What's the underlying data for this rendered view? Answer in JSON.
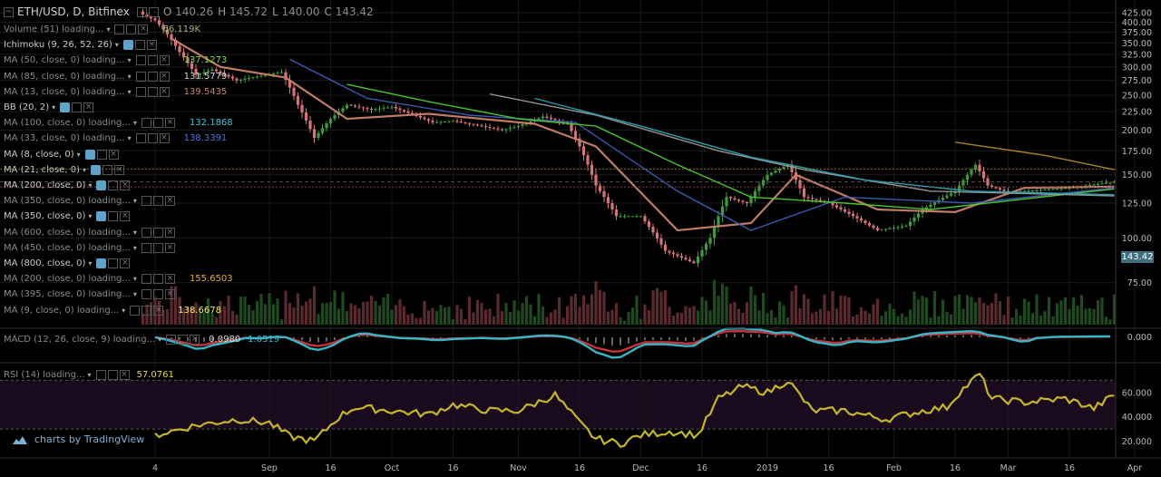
{
  "header": {
    "symbol": "ETH/USD, D, Bitfinex",
    "o_label": "O",
    "o_value": "140.26",
    "h_label": "H",
    "h_value": "145.72",
    "l_label": "L",
    "l_value": "140.00",
    "c_label": "C",
    "c_value": "143.42"
  },
  "indicators": [
    {
      "label": "Volume (51) loading...",
      "loading": true,
      "value": "66.119K",
      "value_color": "#9fb86a"
    },
    {
      "label": "Ichimoku (9, 26, 52, 26)",
      "loading": false,
      "value": "",
      "value_color": ""
    },
    {
      "label": "MA (50, close, 0) loading...",
      "loading": true,
      "value": "137.1273",
      "value_color": "#7ddc3a"
    },
    {
      "label": "MA (85, close, 0) loading...",
      "loading": true,
      "value": "131.5779",
      "value_color": "#d9d9d9"
    },
    {
      "label": "MA (13, close, 0) loading...",
      "loading": true,
      "value": "139.5435",
      "value_color": "#c9826b"
    },
    {
      "label": "BB (20, 2)",
      "loading": false,
      "value": "",
      "value_color": ""
    },
    {
      "label": "MA (100, close, 0) loading...",
      "loading": true,
      "value": "132.1868",
      "value_color": "#3fc3d9"
    },
    {
      "label": "MA (33, close, 0) loading...",
      "loading": true,
      "value": "138.3391",
      "value_color": "#4a78d9"
    },
    {
      "label": "MA (8, close, 0)",
      "loading": false,
      "value": "",
      "value_color": ""
    },
    {
      "label": "MA (21, close, 0)",
      "loading": false,
      "value": "",
      "value_color": ""
    },
    {
      "label": "MA (200, close, 0)",
      "loading": false,
      "value": "",
      "value_color": ""
    },
    {
      "label": "MA (350, close, 0) loading...",
      "loading": true,
      "value": "",
      "value_color": ""
    },
    {
      "label": "MA (350, close, 0)",
      "loading": false,
      "value": "",
      "value_color": ""
    },
    {
      "label": "MA (600, close, 0) loading...",
      "loading": true,
      "value": "",
      "value_color": ""
    },
    {
      "label": "MA (450, close, 0) loading...",
      "loading": true,
      "value": "",
      "value_color": ""
    },
    {
      "label": "MA (800, close, 0)",
      "loading": false,
      "value": "",
      "value_color": ""
    },
    {
      "label": "MA (200, close, 0) loading...",
      "loading": true,
      "value": "155.6503",
      "value_color": "#d9b030"
    },
    {
      "label": "MA (395, close, 0) loading...",
      "loading": true,
      "value": "",
      "value_color": ""
    },
    {
      "label": "MA (9, close, 0) loading...",
      "loading": true,
      "value": "138.6678",
      "value_color": "#f2f25a"
    }
  ],
  "macd": {
    "label": "MACD (12, 26, close, 9) loading...",
    "value1": "0.0980",
    "value2": "1.0519"
  },
  "rsi": {
    "label": "RSI (14) loading...",
    "value": "57.0761"
  },
  "last_price_tag": "143.42",
  "logo_text": "charts by TradingView",
  "colors": {
    "up": "#3e9b3e",
    "down": "#d7737a",
    "ma50": "#4ccf2c",
    "ma85": "#9b9b9b",
    "ma13": "#c9826b",
    "ma100": "#2aa6b8",
    "ma33": "#3d5fb8",
    "ma200": "#b08a2a",
    "ma9": "#d9b030",
    "macd": "#36b7c7",
    "signal": "#c8323a",
    "rsi": "#c4b52c"
  },
  "chart_data": {
    "type": "candlestick",
    "price_ticks": [
      "425.00",
      "400.00",
      "375.00",
      "350.00",
      "325.00",
      "300.00",
      "275.00",
      "250.00",
      "225.00",
      "200.00",
      "175.00",
      "150.00",
      "125.00",
      "100.00",
      "75.00"
    ],
    "macd_ticks": [
      "0.000"
    ],
    "rsi_ticks": [
      "60.000",
      "40.000",
      "20.000"
    ],
    "x_ticks": [
      "4",
      "Sep",
      "16",
      "Oct",
      "16",
      "Nov",
      "16",
      "Dec",
      "16",
      "2019",
      "16",
      "Feb",
      "16",
      "Mar",
      "16",
      "Apr"
    ],
    "x_tick_dates": [
      "2018-08-04",
      "2018-09-01",
      "2018-09-16",
      "2018-10-01",
      "2018-10-16",
      "2018-11-01",
      "2018-11-16",
      "2018-12-01",
      "2018-12-16",
      "2019-01-01",
      "2019-01-16",
      "2019-02-01",
      "2019-02-16",
      "2019-03-01",
      "2019-03-16",
      "2019-04-01"
    ],
    "price_range": [
      60,
      430
    ],
    "rsi_range": [
      10,
      80
    ],
    "rsi_guides": [
      70,
      30
    ],
    "close_keypoints": [
      [
        "2018-08-01",
        420
      ],
      [
        "2018-08-04",
        405
      ],
      [
        "2018-08-07",
        370
      ],
      [
        "2018-08-10",
        330
      ],
      [
        "2018-08-14",
        285
      ],
      [
        "2018-08-18",
        295
      ],
      [
        "2018-08-24",
        275
      ],
      [
        "2018-08-31",
        285
      ],
      [
        "2018-09-04",
        290
      ],
      [
        "2018-09-08",
        235
      ],
      [
        "2018-09-12",
        190
      ],
      [
        "2018-09-16",
        215
      ],
      [
        "2018-09-20",
        235
      ],
      [
        "2018-09-26",
        228
      ],
      [
        "2018-10-01",
        232
      ],
      [
        "2018-10-11",
        210
      ],
      [
        "2018-10-16",
        212
      ],
      [
        "2018-10-28",
        200
      ],
      [
        "2018-11-01",
        205
      ],
      [
        "2018-11-07",
        218
      ],
      [
        "2018-11-13",
        208
      ],
      [
        "2018-11-16",
        180
      ],
      [
        "2018-11-20",
        140
      ],
      [
        "2018-11-25",
        115
      ],
      [
        "2018-12-01",
        115
      ],
      [
        "2018-12-07",
        92
      ],
      [
        "2018-12-14",
        85
      ],
      [
        "2018-12-18",
        100
      ],
      [
        "2018-12-22",
        130
      ],
      [
        "2018-12-27",
        125
      ],
      [
        "2019-01-01",
        150
      ],
      [
        "2019-01-06",
        160
      ],
      [
        "2019-01-10",
        130
      ],
      [
        "2019-01-16",
        125
      ],
      [
        "2019-01-28",
        105
      ],
      [
        "2019-02-04",
        108
      ],
      [
        "2019-02-08",
        120
      ],
      [
        "2019-02-16",
        135
      ],
      [
        "2019-02-21",
        160
      ],
      [
        "2019-02-24",
        140
      ],
      [
        "2019-03-01",
        134
      ],
      [
        "2019-03-16",
        138
      ],
      [
        "2019-03-27",
        143.42
      ]
    ],
    "ma_keypoints": {
      "ma13": [
        [
          "2018-08-08",
          360
        ],
        [
          "2018-08-20",
          300
        ],
        [
          "2018-09-05",
          280
        ],
        [
          "2018-09-20",
          215
        ],
        [
          "2018-10-10",
          222
        ],
        [
          "2018-11-05",
          208
        ],
        [
          "2018-11-20",
          180
        ],
        [
          "2018-12-10",
          105
        ],
        [
          "2018-12-28",
          110
        ],
        [
          "2019-01-08",
          150
        ],
        [
          "2019-01-28",
          120
        ],
        [
          "2019-02-16",
          118
        ],
        [
          "2019-03-05",
          138
        ],
        [
          "2019-03-27",
          139
        ]
      ],
      "ma33": [
        [
          "2018-09-06",
          315
        ],
        [
          "2018-09-25",
          245
        ],
        [
          "2018-10-20",
          220
        ],
        [
          "2018-11-15",
          210
        ],
        [
          "2018-12-10",
          135
        ],
        [
          "2018-12-28",
          105
        ],
        [
          "2019-01-20",
          130
        ],
        [
          "2019-02-20",
          125
        ],
        [
          "2019-03-27",
          138
        ]
      ],
      "ma50": [
        [
          "2018-09-20",
          268
        ],
        [
          "2018-10-10",
          240
        ],
        [
          "2018-11-01",
          215
        ],
        [
          "2018-11-20",
          205
        ],
        [
          "2018-12-10",
          160
        ],
        [
          "2018-12-28",
          130
        ],
        [
          "2019-01-20",
          125
        ],
        [
          "2019-02-10",
          120
        ],
        [
          "2019-03-27",
          137
        ]
      ],
      "ma85": [
        [
          "2018-10-25",
          252
        ],
        [
          "2018-11-20",
          220
        ],
        [
          "2018-12-20",
          175
        ],
        [
          "2019-01-10",
          155
        ],
        [
          "2019-02-10",
          135
        ],
        [
          "2019-03-27",
          131
        ]
      ],
      "ma100": [
        [
          "2018-11-05",
          245
        ],
        [
          "2018-12-01",
          205
        ],
        [
          "2018-12-28",
          168
        ],
        [
          "2019-01-25",
          145
        ],
        [
          "2019-02-20",
          135
        ],
        [
          "2019-03-27",
          132
        ]
      ],
      "ma200": [
        [
          "2019-02-16",
          185
        ],
        [
          "2019-03-10",
          170
        ],
        [
          "2019-03-27",
          155
        ]
      ]
    },
    "rsi_keypoints": [
      [
        "2018-08-04",
        25
      ],
      [
        "2018-08-14",
        33
      ],
      [
        "2018-08-24",
        38
      ],
      [
        "2018-09-01",
        35
      ],
      [
        "2018-09-06",
        24
      ],
      [
        "2018-09-12",
        20
      ],
      [
        "2018-09-18",
        40
      ],
      [
        "2018-09-22",
        48
      ],
      [
        "2018-10-01",
        45
      ],
      [
        "2018-10-10",
        42
      ],
      [
        "2018-10-16",
        50
      ],
      [
        "2018-10-25",
        45
      ],
      [
        "2018-11-01",
        45
      ],
      [
        "2018-11-10",
        58
      ],
      [
        "2018-11-16",
        35
      ],
      [
        "2018-11-20",
        22
      ],
      [
        "2018-11-26",
        18
      ],
      [
        "2018-12-01",
        25
      ],
      [
        "2018-12-08",
        28
      ],
      [
        "2018-12-15",
        25
      ],
      [
        "2018-12-20",
        55
      ],
      [
        "2018-12-26",
        65
      ],
      [
        "2019-01-01",
        60
      ],
      [
        "2019-01-06",
        70
      ],
      [
        "2019-01-12",
        45
      ],
      [
        "2019-01-20",
        45
      ],
      [
        "2019-01-30",
        38
      ],
      [
        "2019-02-08",
        45
      ],
      [
        "2019-02-14",
        48
      ],
      [
        "2019-02-17",
        60
      ],
      [
        "2019-02-22",
        75
      ],
      [
        "2019-02-25",
        55
      ],
      [
        "2019-03-05",
        52
      ],
      [
        "2019-03-15",
        55
      ],
      [
        "2019-03-22",
        47
      ],
      [
        "2019-03-27",
        58
      ]
    ]
  }
}
